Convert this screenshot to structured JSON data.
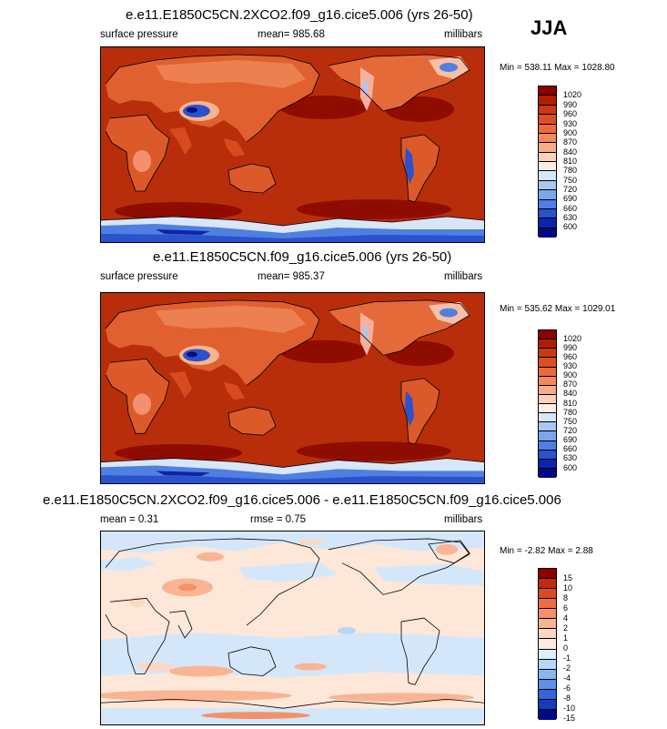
{
  "season": "JJA",
  "panels": [
    {
      "title": "e.e11.E1850C5CN.2XCO2.f09_g16.cice5.006 (yrs 26-50)",
      "left_label": "surface pressure",
      "center_label": "mean= 985.68",
      "right_label": "millibars",
      "minmax": "Min = 538.11 Max = 1028.80",
      "colorbar_labels": [
        "1020",
        "990",
        "960",
        "930",
        "900",
        "870",
        "840",
        "810",
        "780",
        "750",
        "720",
        "690",
        "660",
        "630",
        "600"
      ]
    },
    {
      "title": "e.e11.E1850C5CN.f09_g16.cice5.006 (yrs 26-50)",
      "left_label": "surface pressure",
      "center_label": "mean= 985.37",
      "right_label": "millibars",
      "minmax": "Min = 535.62 Max = 1029.01",
      "colorbar_labels": [
        "1020",
        "990",
        "960",
        "930",
        "900",
        "870",
        "840",
        "810",
        "780",
        "750",
        "720",
        "690",
        "660",
        "630",
        "600"
      ]
    },
    {
      "title": "e.e11.E1850C5CN.2XCO2.f09_g16.cice5.006 - e.e11.E1850C5CN.f09_g16.cice5.006",
      "left_label": "mean =   0.31",
      "center_label": "rmse =   0.75",
      "right_label": "millibars",
      "minmax": "Min =  -2.82 Max =   2.88",
      "colorbar_labels": [
        "15",
        "10",
        "8",
        "6",
        "4",
        "2",
        "1",
        "0",
        "-1",
        "-2",
        "-4",
        "-6",
        "-8",
        "-10",
        "-15"
      ]
    }
  ],
  "colors": {
    "pressure_scale": [
      "#8b0000",
      "#b01e00",
      "#c83a12",
      "#dc4f22",
      "#ec6a3a",
      "#f4895c",
      "#f8ad88",
      "#fbd2b8",
      "#fdeee2",
      "#d7e6fb",
      "#aac8f4",
      "#7ba6ec",
      "#4f7fe0",
      "#2a52cc",
      "#0d24a8",
      "#000a85"
    ],
    "diff_scale": [
      "#8b0000",
      "#c12a0c",
      "#dd4a22",
      "#ee6d40",
      "#f59168",
      "#f9b593",
      "#fcd7c2",
      "#fdebe0",
      "#ddeefc",
      "#b8d6f7",
      "#8ab6f0",
      "#5d90e6",
      "#3366d6",
      "#163cbc",
      "#000a85"
    ],
    "map_ocean_high": "#b82e0a",
    "map_ocean_max": "#8f0c00",
    "diff_background": "#fde7d8",
    "diff_negative": "#d4e7fa"
  }
}
